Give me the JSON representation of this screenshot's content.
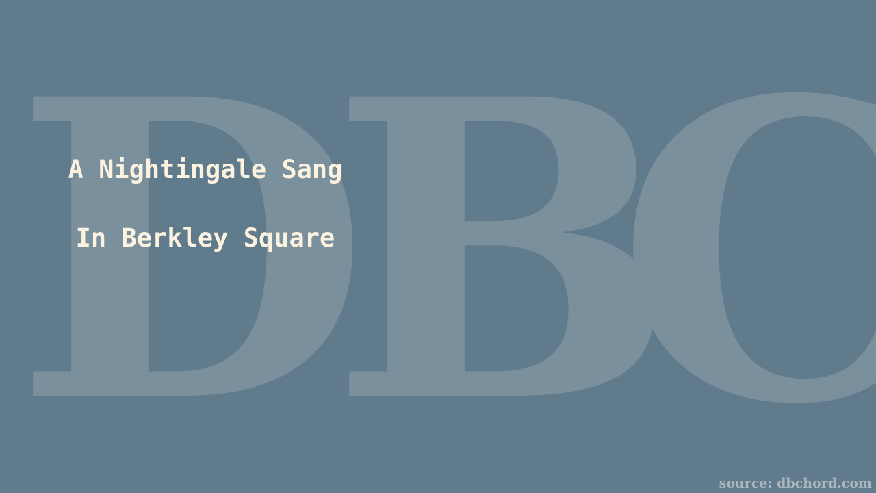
{
  "watermark": {
    "letters": [
      "D",
      "B",
      "C"
    ],
    "color": "#7a909c"
  },
  "song": {
    "title_line_1": "A Nightingale Sang",
    "title_line_2": "In Berkley Square"
  },
  "footer": {
    "source": "source: dbchord.com"
  },
  "colors": {
    "background": "#5f7b8c",
    "title_text": "#fbf3df",
    "source_text": "#a9b6be"
  }
}
